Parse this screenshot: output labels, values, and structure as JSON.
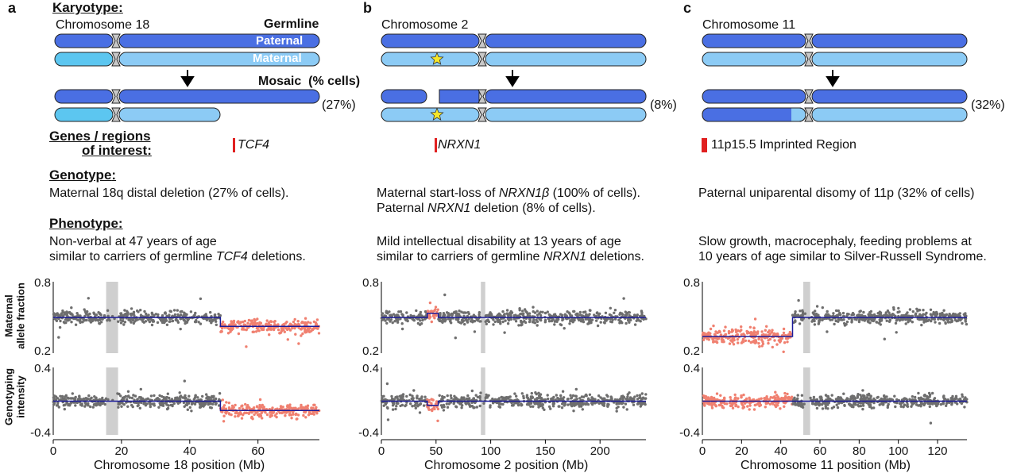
{
  "colors": {
    "paternal": "#4a6fe3",
    "maternal": "#8ccbf5",
    "maternal_light": "#5cc6f0",
    "centromere": "#c8c8c8",
    "outline": "#222222",
    "gray_points": "#6e6e6e",
    "mosaic_points": "#f08070",
    "segment_line": "#1a1a9a",
    "gap_band": "#cfcfcf",
    "region_marker": "#e02020",
    "star": "#f5e62a"
  },
  "labels": {
    "karyotype": "Karyotype",
    "germline": "Germline",
    "paternal": "Paternal",
    "maternal": "Maternal",
    "mosaic": "Mosaic  (% cells)",
    "genes_line1": "Genes / regions",
    "genes_line2": "of interest",
    "genotype": "Genotype",
    "phenotype": "Phenotype",
    "colon": ":",
    "y_axis_top": [
      "Maternal",
      "allele fraction"
    ],
    "y_axis_bottom": [
      "Genotyping",
      "intensity"
    ]
  },
  "panels": [
    {
      "letter": "a",
      "chromosome": "Chromosome 18",
      "percent": "(27%)",
      "region": {
        "name": "TCF4",
        "italic": true
      },
      "genotype": [
        "Maternal 18q distal deletion (27% of cells)."
      ],
      "phenotype": [
        "Non-verbal at 47 years of age",
        "similar to carriers of germline TCF4 deletions."
      ],
      "xlabel": "Chromosome 18 position (Mb)"
    },
    {
      "letter": "b",
      "chromosome": "Chromosome 2",
      "percent": "(8%)",
      "region": {
        "name": "NRXN1",
        "italic": true
      },
      "genotype": [
        "Maternal start-loss of NRXN1β (100% of cells).",
        "Paternal NRXN1 deletion (8% of cells)."
      ],
      "phenotype": [
        "Mild intellectual disability at 13 years of age",
        "similar to carriers of germline NRXN1 deletions."
      ],
      "xlabel": "Chromosome 2 position (Mb)"
    },
    {
      "letter": "c",
      "chromosome": "Chromosome 11",
      "percent": "(32%)",
      "region": {
        "name": "11p15.5 Imprinted Region",
        "italic": false
      },
      "genotype": [
        "Paternal uniparental disomy of 11p (32% of cells)"
      ],
      "phenotype": [
        "Slow growth, macrocephaly, feeding problems at",
        "10 years of age similar to Silver-Russell Syndrome."
      ],
      "xlabel": "Chromosome 11 position (Mb)"
    }
  ],
  "chart_data": [
    {
      "type": "scatter",
      "panel": "a",
      "ylabel": "Maternal allele fraction",
      "xlim": [
        0,
        78
      ],
      "ylim": [
        0.2,
        0.8
      ],
      "xticks": [
        0,
        20,
        40,
        60
      ],
      "yticks": [
        "0.8",
        "0.2"
      ],
      "centromere_gap_mb": [
        15.5,
        19
      ],
      "series": [
        {
          "color": "gray",
          "x_range": [
            0,
            49
          ],
          "level": 0.5,
          "spread": 0.05
        },
        {
          "color": "salmon",
          "x_range": [
            49,
            78
          ],
          "level": 0.425,
          "spread": 0.05
        }
      ],
      "segments": [
        {
          "x": [
            0,
            49
          ],
          "y": 0.5
        },
        {
          "x": [
            49,
            78
          ],
          "y": 0.425
        }
      ]
    },
    {
      "type": "scatter",
      "panel": "a",
      "ylabel": "Genotyping intensity",
      "xlim": [
        0,
        78
      ],
      "ylim": [
        -0.4,
        0.4
      ],
      "xticks": [
        0,
        20,
        40,
        60
      ],
      "yticks": [
        "0.4",
        "-0.4"
      ],
      "centromere_gap_mb": [
        15.5,
        19
      ],
      "series": [
        {
          "color": "gray",
          "x_range": [
            0,
            49
          ],
          "level": 0.0,
          "spread": 0.07
        },
        {
          "color": "salmon",
          "x_range": [
            49,
            78
          ],
          "level": -0.11,
          "spread": 0.07
        }
      ],
      "segments": [
        {
          "x": [
            0,
            49
          ],
          "y": 0.0
        },
        {
          "x": [
            49,
            78
          ],
          "y": -0.11
        }
      ]
    },
    {
      "type": "scatter",
      "panel": "b",
      "ylabel": "Maternal allele fraction",
      "xlim": [
        0,
        242
      ],
      "ylim": [
        0.2,
        0.8
      ],
      "xticks": [
        0,
        50,
        100,
        150,
        200
      ],
      "yticks": [
        "0.8",
        "0.2"
      ],
      "centromere_gap_mb": [
        91,
        95
      ],
      "series": [
        {
          "color": "gray",
          "x_range": [
            0,
            242
          ],
          "level": 0.5,
          "spread": 0.05,
          "exclude": [
            42,
            52
          ]
        },
        {
          "color": "salmon",
          "x_range": [
            42,
            52
          ],
          "level": 0.53,
          "spread": 0.08
        }
      ],
      "segments": [
        {
          "x": [
            0,
            42
          ],
          "y": 0.5
        },
        {
          "x": [
            42,
            52
          ],
          "y": 0.535
        },
        {
          "x": [
            52,
            242
          ],
          "y": 0.5
        }
      ]
    },
    {
      "type": "scatter",
      "panel": "b",
      "ylabel": "Genotyping intensity",
      "xlim": [
        0,
        242
      ],
      "ylim": [
        -0.4,
        0.4
      ],
      "xticks": [
        0,
        50,
        100,
        150,
        200
      ],
      "yticks": [
        "0.4",
        "-0.4"
      ],
      "centromere_gap_mb": [
        91,
        95
      ],
      "series": [
        {
          "color": "gray",
          "x_range": [
            0,
            242
          ],
          "level": 0.0,
          "spread": 0.07,
          "exclude": [
            42,
            52
          ]
        },
        {
          "color": "salmon",
          "x_range": [
            42,
            52
          ],
          "level": -0.05,
          "spread": 0.08
        }
      ],
      "segments": [
        {
          "x": [
            0,
            42
          ],
          "y": 0.0
        },
        {
          "x": [
            42,
            52
          ],
          "y": -0.05
        },
        {
          "x": [
            52,
            242
          ],
          "y": 0.0
        }
      ]
    },
    {
      "type": "scatter",
      "panel": "c",
      "ylabel": "Maternal allele fraction",
      "xlim": [
        0,
        135
      ],
      "ylim": [
        0.2,
        0.8
      ],
      "xticks": [
        0,
        20,
        40,
        60,
        80,
        100,
        120
      ],
      "yticks": [
        "0.8",
        "0.2"
      ],
      "centromere_gap_mb": [
        51.5,
        55
      ],
      "series": [
        {
          "color": "salmon",
          "x_range": [
            0,
            46
          ],
          "level": 0.34,
          "spread": 0.06
        },
        {
          "color": "gray",
          "x_range": [
            46,
            135
          ],
          "level": 0.5,
          "spread": 0.05
        }
      ],
      "segments": [
        {
          "x": [
            0,
            46
          ],
          "y": 0.34
        },
        {
          "x": [
            46,
            135
          ],
          "y": 0.5
        }
      ]
    },
    {
      "type": "scatter",
      "panel": "c",
      "ylabel": "Genotyping intensity",
      "xlim": [
        0,
        135
      ],
      "ylim": [
        -0.4,
        0.4
      ],
      "xticks": [
        0,
        20,
        40,
        60,
        80,
        100,
        120
      ],
      "yticks": [
        "0.4",
        "-0.4"
      ],
      "centromere_gap_mb": [
        51.5,
        55
      ],
      "series": [
        {
          "color": "salmon",
          "x_range": [
            0,
            46
          ],
          "level": 0.0,
          "spread": 0.07
        },
        {
          "color": "gray",
          "x_range": [
            46,
            135
          ],
          "level": 0.0,
          "spread": 0.07
        }
      ],
      "segments": [
        {
          "x": [
            0,
            46
          ],
          "y": 0.0
        },
        {
          "x": [
            46,
            135
          ],
          "y": 0.0
        }
      ]
    }
  ]
}
